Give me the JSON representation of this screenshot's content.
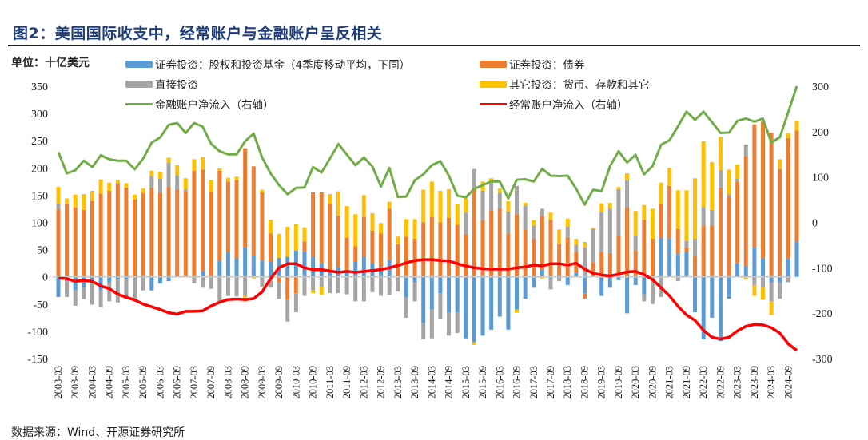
{
  "title": "图2：美国国际收支中，经常账户与金融账户呈反相关",
  "unit": "单位：十亿美元",
  "source": "数据来源：Wind、开源证券研究所",
  "chart_data": {
    "type": "bar",
    "stacked": true,
    "ylim_left": [
      -150,
      350
    ],
    "ylim_right": [
      -300,
      300
    ],
    "left_ticks": [
      "350",
      "300",
      "250",
      "200",
      "150",
      "100",
      "50",
      "0",
      "-50",
      "-100",
      "-150"
    ],
    "right_ticks": [
      "300",
      "200",
      "100",
      "0",
      "-100",
      "-200",
      "-300"
    ],
    "grid": false,
    "legend_position": "top",
    "x_tick_labels": [
      "2003-03",
      "2003-09",
      "2004-03",
      "2004-09",
      "2005-03",
      "2005-09",
      "2006-03",
      "2006-09",
      "2007-03",
      "2007-09",
      "2008-03",
      "2008-09",
      "2009-03",
      "2009-09",
      "2010-03",
      "2010-09",
      "2011-03",
      "2011-09",
      "2012-03",
      "2012-09",
      "2013-03",
      "2013-09",
      "2014-03",
      "2014-09",
      "2015-03",
      "2015-09",
      "2016-03",
      "2016-09",
      "2017-03",
      "2017-09",
      "2018-03",
      "2018-09",
      "2019-03",
      "2019-09",
      "2020-03",
      "2020-09",
      "2021-03",
      "2021-09",
      "2022-03",
      "2022-09",
      "2023-03",
      "2023-09",
      "2024-03",
      "2024-09"
    ],
    "series": [
      {
        "name": "证券投资：股权和投资基金（4季度移动平均，下同）",
        "type": "bar",
        "axis": "left",
        "color": "#5B9BD5",
        "values": [
          -37,
          -8,
          -25,
          -20,
          -10,
          -25,
          -10,
          -5,
          -5,
          0,
          0,
          -25,
          -12,
          -8,
          2,
          0,
          0,
          10,
          0,
          30,
          45,
          35,
          55,
          40,
          30,
          28,
          35,
          37,
          48,
          47,
          37,
          25,
          10,
          18,
          13,
          28,
          37,
          25,
          18,
          32,
          0,
          -38,
          -10,
          -85,
          -60,
          -30,
          -65,
          -65,
          -113,
          -120,
          -108,
          -97,
          -73,
          -97,
          -60,
          -40,
          -20,
          13,
          -3,
          0,
          -15,
          7,
          -30,
          0,
          -35,
          -20,
          -6,
          -67,
          -15,
          -32,
          0,
          72,
          71,
          43,
          45,
          -65,
          -115,
          -75,
          -118,
          -40,
          25,
          20,
          55,
          35,
          -10,
          -10,
          33,
          65
        ]
      },
      {
        "name": "证券投资：债券",
        "type": "bar",
        "axis": "left",
        "color": "#ED7D31",
        "values": [
          124,
          134,
          127,
          123,
          139,
          153,
          158,
          172,
          164,
          142,
          154,
          164,
          155,
          165,
          158,
          157,
          195,
          187,
          157,
          165,
          130,
          142,
          181,
          163,
          125,
          52,
          -10,
          -42,
          -30,
          18,
          118,
          130,
          124,
          94,
          59,
          28,
          73,
          60,
          62,
          93,
          60,
          74,
          70,
          100,
          110,
          100,
          108,
          96,
          78,
          160,
          105,
          122,
          126,
          80,
          115,
          86,
          70,
          99,
          105,
          60,
          73,
          40,
          -10,
          27,
          45,
          44,
          75,
          127,
          48,
          105,
          70,
          61,
          96,
          45,
          9,
          39,
          94,
          94,
          164,
          147,
          150,
          201,
          225,
          250,
          265,
          198,
          222,
          204
        ]
      },
      {
        "name": "直接投资",
        "type": "bar",
        "axis": "left",
        "color": "#A5A5A5",
        "values": [
          10,
          -29,
          -28,
          -21,
          -41,
          -31,
          -35,
          -42,
          -36,
          -40,
          -25,
          21,
          25,
          45,
          27,
          4,
          -12,
          -20,
          -22,
          -45,
          -35,
          -36,
          -35,
          0,
          -18,
          -20,
          -30,
          -40,
          -35,
          -35,
          -25,
          -18,
          -30,
          -30,
          -32,
          -45,
          -45,
          -28,
          -35,
          -33,
          -27,
          -37,
          -35,
          -30,
          -53,
          -48,
          -43,
          -38,
          40,
          38,
          53,
          52,
          28,
          40,
          52,
          45,
          24,
          13,
          -20,
          -8,
          19,
          12,
          54,
          61,
          74,
          81,
          86,
          50,
          27,
          -13,
          -50,
          -37,
          0,
          -8,
          12,
          31,
          34,
          29,
          32,
          5,
          6,
          22,
          -15,
          -20,
          -35,
          -30,
          -10,
          0
        ]
      },
      {
        "name": "其它投资：货币、存款和其它",
        "type": "bar",
        "axis": "left",
        "color": "#FFC000",
        "values": [
          31,
          10,
          24,
          29,
          19,
          26,
          15,
          6,
          8,
          9,
          8,
          10,
          13,
          9,
          18,
          20,
          21,
          23,
          21,
          4,
          7,
          7,
          -10,
          -3,
          5,
          25,
          44,
          55,
          49,
          26,
          -5,
          -15,
          18,
          45,
          58,
          59,
          40,
          32,
          19,
          13,
          14,
          32,
          36,
          60,
          65,
          58,
          53,
          37,
          26,
          -5,
          17,
          7,
          8,
          19,
          -6,
          5,
          10,
          -3,
          13,
          27,
          15,
          11,
          10,
          2,
          16,
          11,
          4,
          13,
          46,
          27,
          55,
          40,
          33,
          71,
          93,
          111,
          121,
          88,
          61,
          45,
          25,
          -5,
          -20,
          -22,
          -25,
          18,
          9,
          18
        ]
      },
      {
        "name": "金融账户净流入（右轴）",
        "type": "line",
        "axis": "right",
        "color": "#70AD47",
        "values": [
          155,
          108,
          115,
          136,
          122,
          148,
          139,
          136,
          136,
          117,
          141,
          176,
          187,
          215,
          219,
          197,
          219,
          211,
          173,
          157,
          150,
          150,
          179,
          196,
          143,
          108,
          82,
          62,
          76,
          77,
          122,
          110,
          141,
          173,
          149,
          126,
          143,
          123,
          79,
          120,
          56,
          57,
          93,
          106,
          126,
          135,
          103,
          59,
          55,
          74,
          82,
          90,
          90,
          53,
          94,
          95,
          90,
          118,
          103,
          102,
          103,
          74,
          39,
          72,
          69,
          124,
          157,
          132,
          149,
          106,
          124,
          171,
          181,
          212,
          244,
          226,
          244,
          221,
          197,
          198,
          224,
          229,
          222,
          229,
          176,
          188,
          244,
          300
        ]
      },
      {
        "name": "经常账户净流入（右轴）",
        "type": "line",
        "axis": "right",
        "color": "#FF0000",
        "values": [
          -123,
          -124,
          -130,
          -128,
          -130,
          -140,
          -146,
          -158,
          -165,
          -171,
          -180,
          -186,
          -192,
          -199,
          -202,
          -196,
          -196,
          -195,
          -184,
          -176,
          -170,
          -169,
          -170,
          -168,
          -153,
          -124,
          -100,
          -91,
          -91,
          -100,
          -104,
          -104,
          -107,
          -110,
          -108,
          -110,
          -108,
          -106,
          -104,
          -100,
          -95,
          -89,
          -84,
          -82,
          -82,
          -84,
          -85,
          -91,
          -96,
          -100,
          -102,
          -103,
          -103,
          -103,
          -100,
          -98,
          -94,
          -96,
          -91,
          -91,
          -94,
          -90,
          -103,
          -112,
          -116,
          -118,
          -114,
          -109,
          -108,
          -115,
          -126,
          -144,
          -162,
          -185,
          -204,
          -216,
          -238,
          -253,
          -257,
          -253,
          -239,
          -229,
          -225,
          -226,
          -232,
          -244,
          -268,
          -282
        ]
      }
    ]
  }
}
